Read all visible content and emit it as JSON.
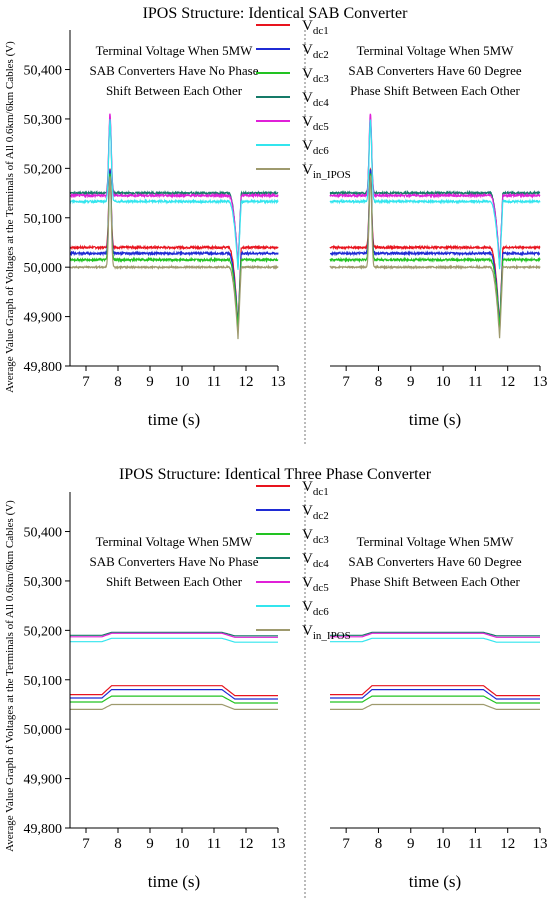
{
  "figure": {
    "ylabel": "Average Value Graph of Voltages at the Terminals of All 0.6km/6km Cables (V)",
    "divider_color": "#777777"
  },
  "chart_data": [
    {
      "type": "line",
      "title": "IPOS Structure: Identical SAB Converter",
      "xlabel": "time (s)",
      "xlim": [
        6.5,
        13
      ],
      "ylim": [
        49800,
        50480
      ],
      "xticks": [
        7,
        8,
        9,
        10,
        11,
        12,
        13
      ],
      "yticks": [
        49800,
        49900,
        50000,
        50100,
        50200,
        50300,
        50400
      ],
      "ytick_labels": [
        "49,800",
        "49,900",
        "50,000",
        "50,100",
        "50,200",
        "50,300",
        "50,400"
      ],
      "legend": "top-center",
      "grid": false,
      "panels": [
        {
          "label": [
            "Terminal Voltage When 5MW",
            "SAB Converters Have No Phase",
            "Shift Between Each Other"
          ]
        },
        {
          "label": [
            "Terminal Voltage When 5MW",
            "SAB Converters Have 60 Degree",
            "Phase Shift Between Each Other"
          ]
        }
      ],
      "series": [
        {
          "name": "V",
          "sub": "dc1",
          "color": "#e8141e",
          "base": 50040,
          "peak": 50200,
          "dip": 49880,
          "noise": 2
        },
        {
          "name": "V",
          "sub": "dc2",
          "color": "#1f2bd4",
          "base": 50028,
          "peak": 50198,
          "dip": 49880,
          "noise": 2
        },
        {
          "name": "V",
          "sub": "dc3",
          "color": "#22c322",
          "base": 50015,
          "peak": 50190,
          "dip": 49875,
          "noise": 2
        },
        {
          "name": "V",
          "sub": "dc4",
          "color": "#157a68",
          "base": 50150,
          "peak": 50300,
          "dip": 50000,
          "noise": 2
        },
        {
          "name": "V",
          "sub": "dc5",
          "color": "#e020d8",
          "base": 50145,
          "peak": 50312,
          "dip": 50005,
          "noise": 2
        },
        {
          "name": "V",
          "sub": "dc6",
          "color": "#33e5ee",
          "base": 50133,
          "peak": 50298,
          "dip": 49995,
          "noise": 2
        },
        {
          "name": "V",
          "sub": "in_IPOS",
          "color": "#9e9a6e",
          "base": 50000,
          "peak": 50185,
          "dip": 49855,
          "noise": 1.5
        }
      ]
    },
    {
      "type": "line",
      "title": "IPOS Structure: Identical Three Phase Converter",
      "xlabel": "time (s)",
      "xlim": [
        6.5,
        13
      ],
      "ylim": [
        49800,
        50480
      ],
      "xticks": [
        7,
        8,
        9,
        10,
        11,
        12,
        13
      ],
      "yticks": [
        49800,
        49900,
        50000,
        50100,
        50200,
        50300,
        50400
      ],
      "ytick_labels": [
        "49,800",
        "49,900",
        "50,000",
        "50,100",
        "50,200",
        "50,300",
        "50,400"
      ],
      "legend": "top-center",
      "grid": false,
      "panels": [
        {
          "label": [
            "Terminal Voltage When 5MW",
            "SAB Converters Have No Phase",
            "Shift Between Each Other"
          ]
        },
        {
          "label": [
            "Terminal Voltage When 5MW",
            "SAB Converters Have 60 Degree",
            "Phase Shift Between Each Other"
          ]
        }
      ],
      "series": [
        {
          "name": "V",
          "sub": "dc1",
          "color": "#e8141e",
          "start": 50070,
          "high": 50088,
          "end": 50068
        },
        {
          "name": "V",
          "sub": "dc2",
          "color": "#1f2bd4",
          "start": 50063,
          "high": 50080,
          "end": 50061
        },
        {
          "name": "V",
          "sub": "dc3",
          "color": "#22c322",
          "start": 50055,
          "high": 50067,
          "end": 50053
        },
        {
          "name": "V",
          "sub": "dc4",
          "color": "#157a68",
          "start": 50190,
          "high": 50196,
          "end": 50189
        },
        {
          "name": "V",
          "sub": "dc5",
          "color": "#e020d8",
          "start": 50187,
          "high": 50194,
          "end": 50186
        },
        {
          "name": "V",
          "sub": "dc6",
          "color": "#33e5ee",
          "start": 50177,
          "high": 50184,
          "end": 50176
        },
        {
          "name": "V",
          "sub": "in_IPOS",
          "color": "#9e9a6e",
          "start": 50040,
          "high": 50050,
          "end": 50040
        }
      ]
    }
  ]
}
